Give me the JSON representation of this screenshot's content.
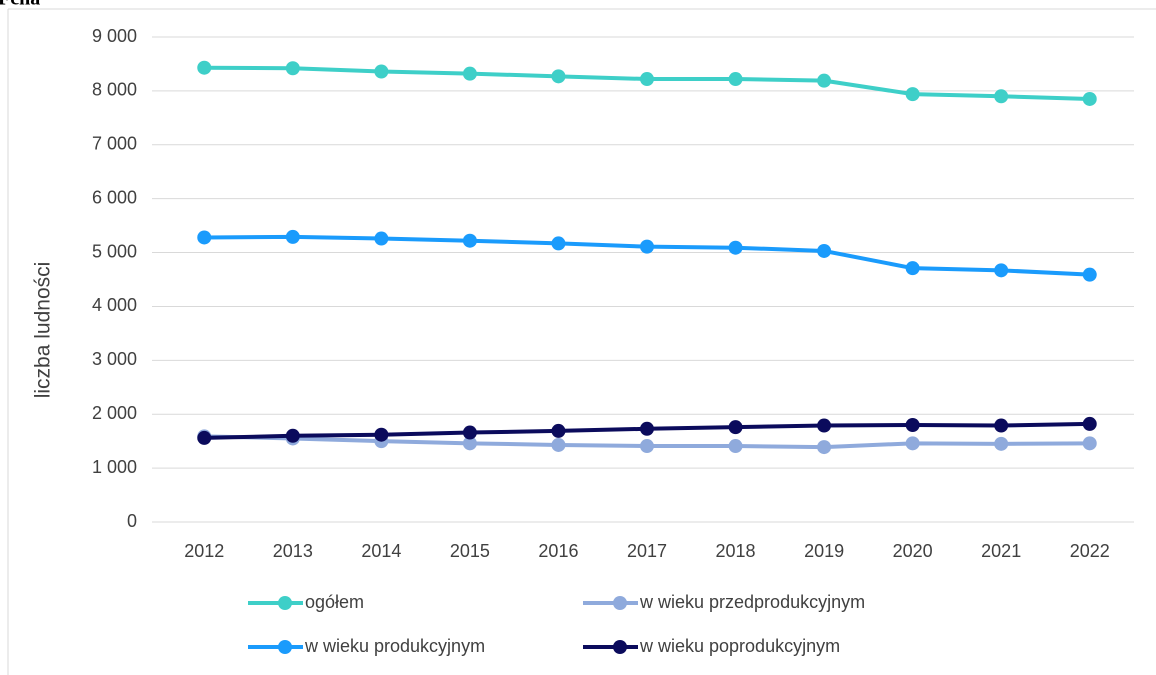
{
  "chart_data": {
    "type": "line",
    "title": "Fcha",
    "ylabel": "liczba ludności",
    "categories": [
      "2012",
      "2013",
      "2014",
      "2015",
      "2016",
      "2017",
      "2018",
      "2019",
      "2020",
      "2021",
      "2022"
    ],
    "series": [
      {
        "name": "ogółem",
        "color": "#3ecfc8",
        "values": [
          8430,
          8420,
          8360,
          8320,
          8270,
          8220,
          8220,
          8190,
          7940,
          7900,
          7850
        ]
      },
      {
        "name": "w wieku przedprodukcyjnym",
        "color": "#8faadc",
        "values": [
          1590,
          1550,
          1500,
          1460,
          1430,
          1410,
          1410,
          1390,
          1460,
          1450,
          1460
        ]
      },
      {
        "name": "w wieku produkcyjnym",
        "color": "#1a9bfc",
        "values": [
          5280,
          5290,
          5260,
          5220,
          5170,
          5110,
          5090,
          5030,
          4710,
          4670,
          4590
        ]
      },
      {
        "name": "w wieku poprodukcyjnym",
        "color": "#0b0b5c",
        "values": [
          1560,
          1600,
          1620,
          1660,
          1690,
          1730,
          1760,
          1790,
          1800,
          1790,
          1820
        ]
      }
    ],
    "ylim": [
      0,
      9000
    ],
    "yticks": [
      0,
      {
        "value": 1000,
        "label": "1 000"
      },
      {
        "value": 2000,
        "label": "2 000"
      },
      {
        "value": 3000,
        "label": "3 000"
      },
      {
        "value": 4000,
        "label": "4 000"
      },
      {
        "value": 5000,
        "label": "5 000"
      },
      {
        "value": 6000,
        "label": "6 000"
      },
      {
        "value": 7000,
        "label": "7 000"
      },
      {
        "value": 8000,
        "label": "8 000"
      },
      {
        "value": 9000,
        "label": "9 000"
      }
    ],
    "grid": true
  }
}
